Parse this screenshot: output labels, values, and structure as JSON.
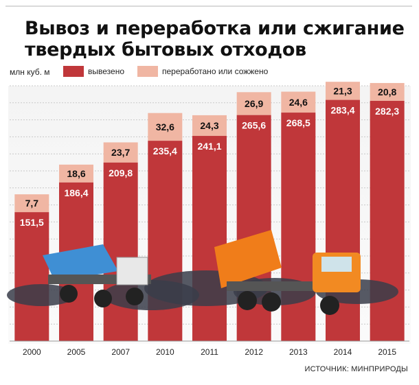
{
  "header": {
    "title_line1": "Вывоз и переработка или сжигание",
    "title_line2": "твердых бытовых отходов"
  },
  "legend": {
    "unit": "млн куб. м",
    "items": [
      {
        "label": "вывезено",
        "color": "#c0373a"
      },
      {
        "label": "переработано или сожжено",
        "color": "#f0b6a3"
      }
    ]
  },
  "source": "ИСТОЧНИК: МИНПРИРОДЫ",
  "chart_data": {
    "type": "bar",
    "categories": [
      "2000",
      "2005",
      "2007",
      "2010",
      "2011",
      "2012",
      "2013",
      "2014",
      "2015"
    ],
    "series": [
      {
        "name": "вывезено",
        "values": [
          151.5,
          186.4,
          209.8,
          235.4,
          241.1,
          265.6,
          268.5,
          283.4,
          282.3
        ],
        "labels": [
          "151,5",
          "186,4",
          "209,8",
          "235,4",
          "241,1",
          "265,6",
          "268,5",
          "283,4",
          "282,3"
        ]
      },
      {
        "name": "переработано или сожжено",
        "values": [
          7.7,
          18.6,
          23.7,
          32.6,
          24.3,
          26.9,
          24.6,
          21.3,
          20.8
        ],
        "labels": [
          "7,7",
          "18,6",
          "23,7",
          "32,6",
          "24,3",
          "26,9",
          "24,6",
          "21,3",
          "20,8"
        ]
      }
    ],
    "ylim": [
      0,
      300
    ],
    "colors": {
      "removed": "#c0373a",
      "recycled": "#f0b6a3",
      "grid": "#c8c8c8"
    },
    "grid": true,
    "legend_position": "top-left"
  }
}
